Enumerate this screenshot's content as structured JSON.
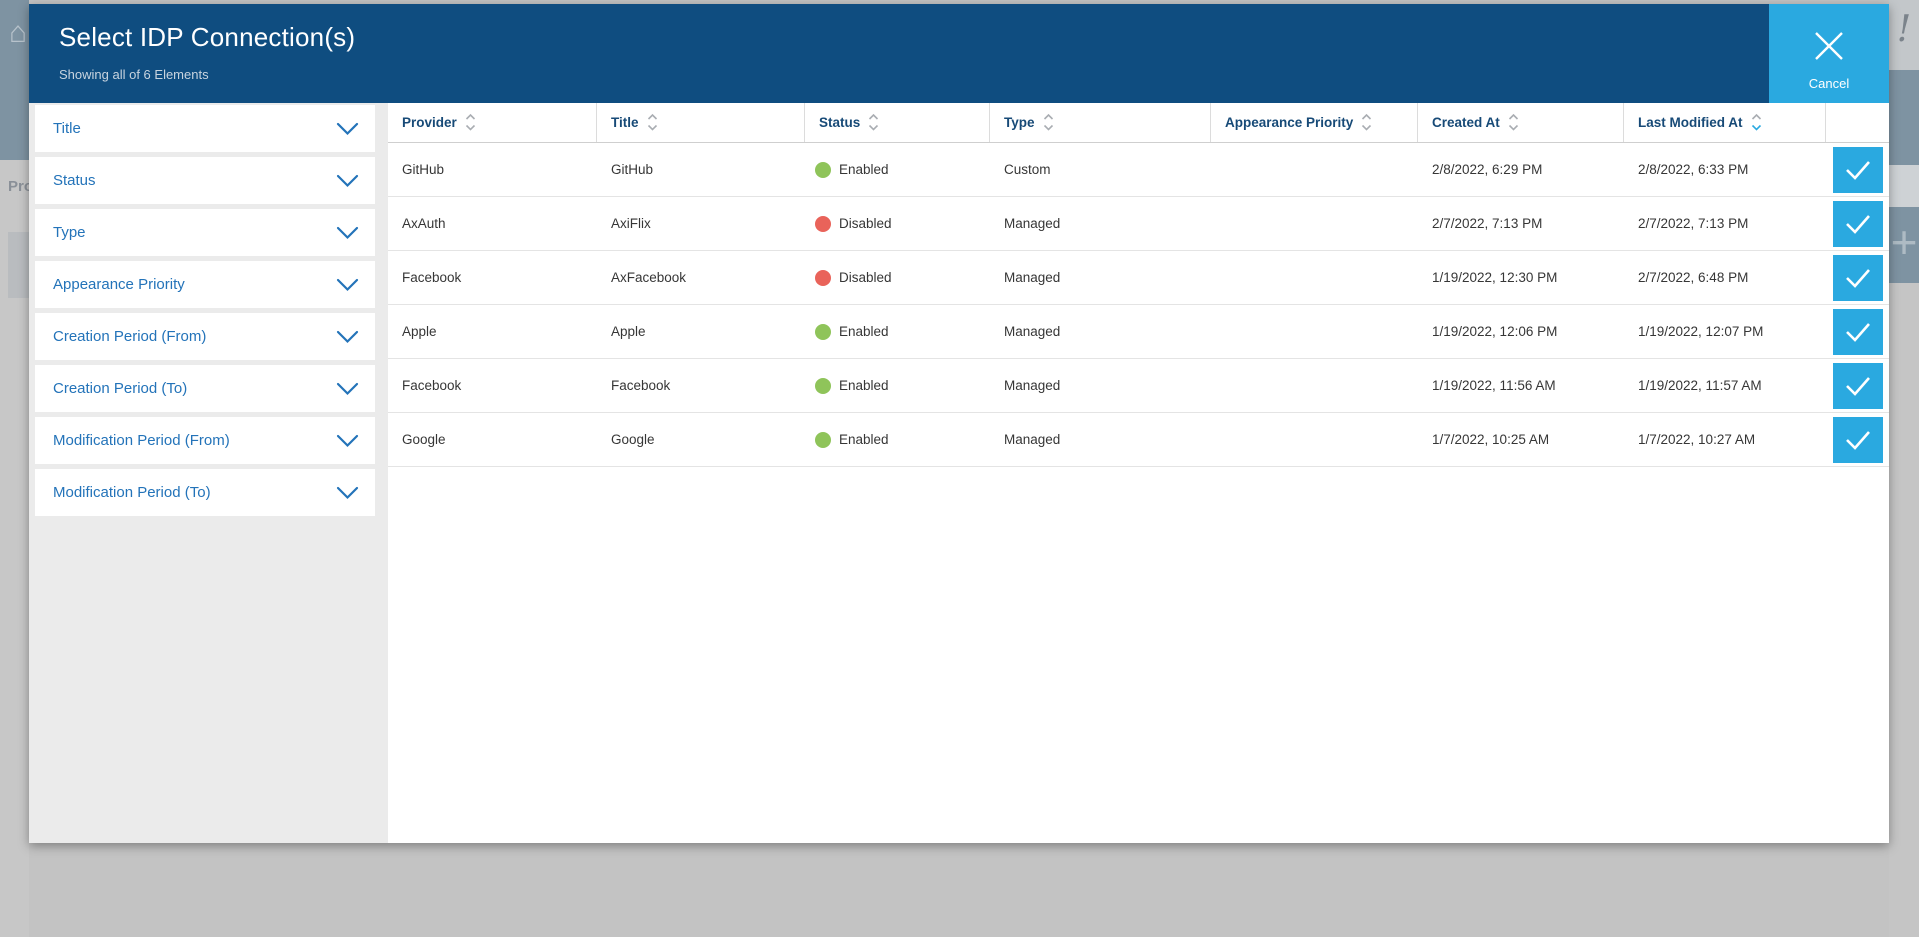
{
  "colors": {
    "header_bg": "#0f4d80",
    "accent": "#2aa9e0",
    "link": "#2373b9",
    "status_enabled": "#8fc45a",
    "status_disabled": "#e9635a"
  },
  "backdrop": {
    "left_partial_text": "Pro",
    "exclamation_glyph": "!",
    "plus_glyph": "+",
    "home_glyph": "⌂"
  },
  "modal": {
    "title": "Select IDP Connection(s)",
    "subtitle": "Showing all of 6 Elements",
    "cancel_label": "Cancel"
  },
  "sidebar": {
    "filters": [
      {
        "label": "Title"
      },
      {
        "label": "Status"
      },
      {
        "label": "Type"
      },
      {
        "label": "Appearance Priority"
      },
      {
        "label": "Creation Period (From)"
      },
      {
        "label": "Creation Period (To)"
      },
      {
        "label": "Modification Period (From)"
      },
      {
        "label": "Modification Period (To)"
      }
    ]
  },
  "table": {
    "columns": [
      {
        "key": "provider",
        "label": "Provider",
        "sort_active": ""
      },
      {
        "key": "title",
        "label": "Title",
        "sort_active": ""
      },
      {
        "key": "status",
        "label": "Status",
        "sort_active": ""
      },
      {
        "key": "type",
        "label": "Type",
        "sort_active": ""
      },
      {
        "key": "appearance_priority",
        "label": "Appearance Priority",
        "sort_active": ""
      },
      {
        "key": "created_at",
        "label": "Created At",
        "sort_active": ""
      },
      {
        "key": "last_modified",
        "label": "Last Modified At",
        "sort_active": "desc"
      },
      {
        "key": "select",
        "label": "",
        "sort_active": ""
      }
    ],
    "rows": [
      {
        "provider": "GitHub",
        "title": "GitHub",
        "status": "Enabled",
        "status_class": "enabled",
        "type": "Custom",
        "appearance_priority": "",
        "created_at": "2/8/2022, 6:29 PM",
        "last_modified": "2/8/2022, 6:33 PM",
        "selected": true
      },
      {
        "provider": "AxAuth",
        "title": "AxiFlix",
        "status": "Disabled",
        "status_class": "disabled",
        "type": "Managed",
        "appearance_priority": "",
        "created_at": "2/7/2022, 7:13 PM",
        "last_modified": "2/7/2022, 7:13 PM",
        "selected": true
      },
      {
        "provider": "Facebook",
        "title": "AxFacebook",
        "status": "Disabled",
        "status_class": "disabled",
        "type": "Managed",
        "appearance_priority": "",
        "created_at": "1/19/2022, 12:30 PM",
        "last_modified": "2/7/2022, 6:48 PM",
        "selected": true
      },
      {
        "provider": "Apple",
        "title": "Apple",
        "status": "Enabled",
        "status_class": "enabled",
        "type": "Managed",
        "appearance_priority": "",
        "created_at": "1/19/2022, 12:06 PM",
        "last_modified": "1/19/2022, 12:07 PM",
        "selected": true
      },
      {
        "provider": "Facebook",
        "title": "Facebook",
        "status": "Enabled",
        "status_class": "enabled",
        "type": "Managed",
        "appearance_priority": "",
        "created_at": "1/19/2022, 11:56 AM",
        "last_modified": "1/19/2022, 11:57 AM",
        "selected": true
      },
      {
        "provider": "Google",
        "title": "Google",
        "status": "Enabled",
        "status_class": "enabled",
        "type": "Managed",
        "appearance_priority": "",
        "created_at": "1/7/2022, 10:25 AM",
        "last_modified": "1/7/2022, 10:27 AM",
        "selected": true
      }
    ]
  }
}
